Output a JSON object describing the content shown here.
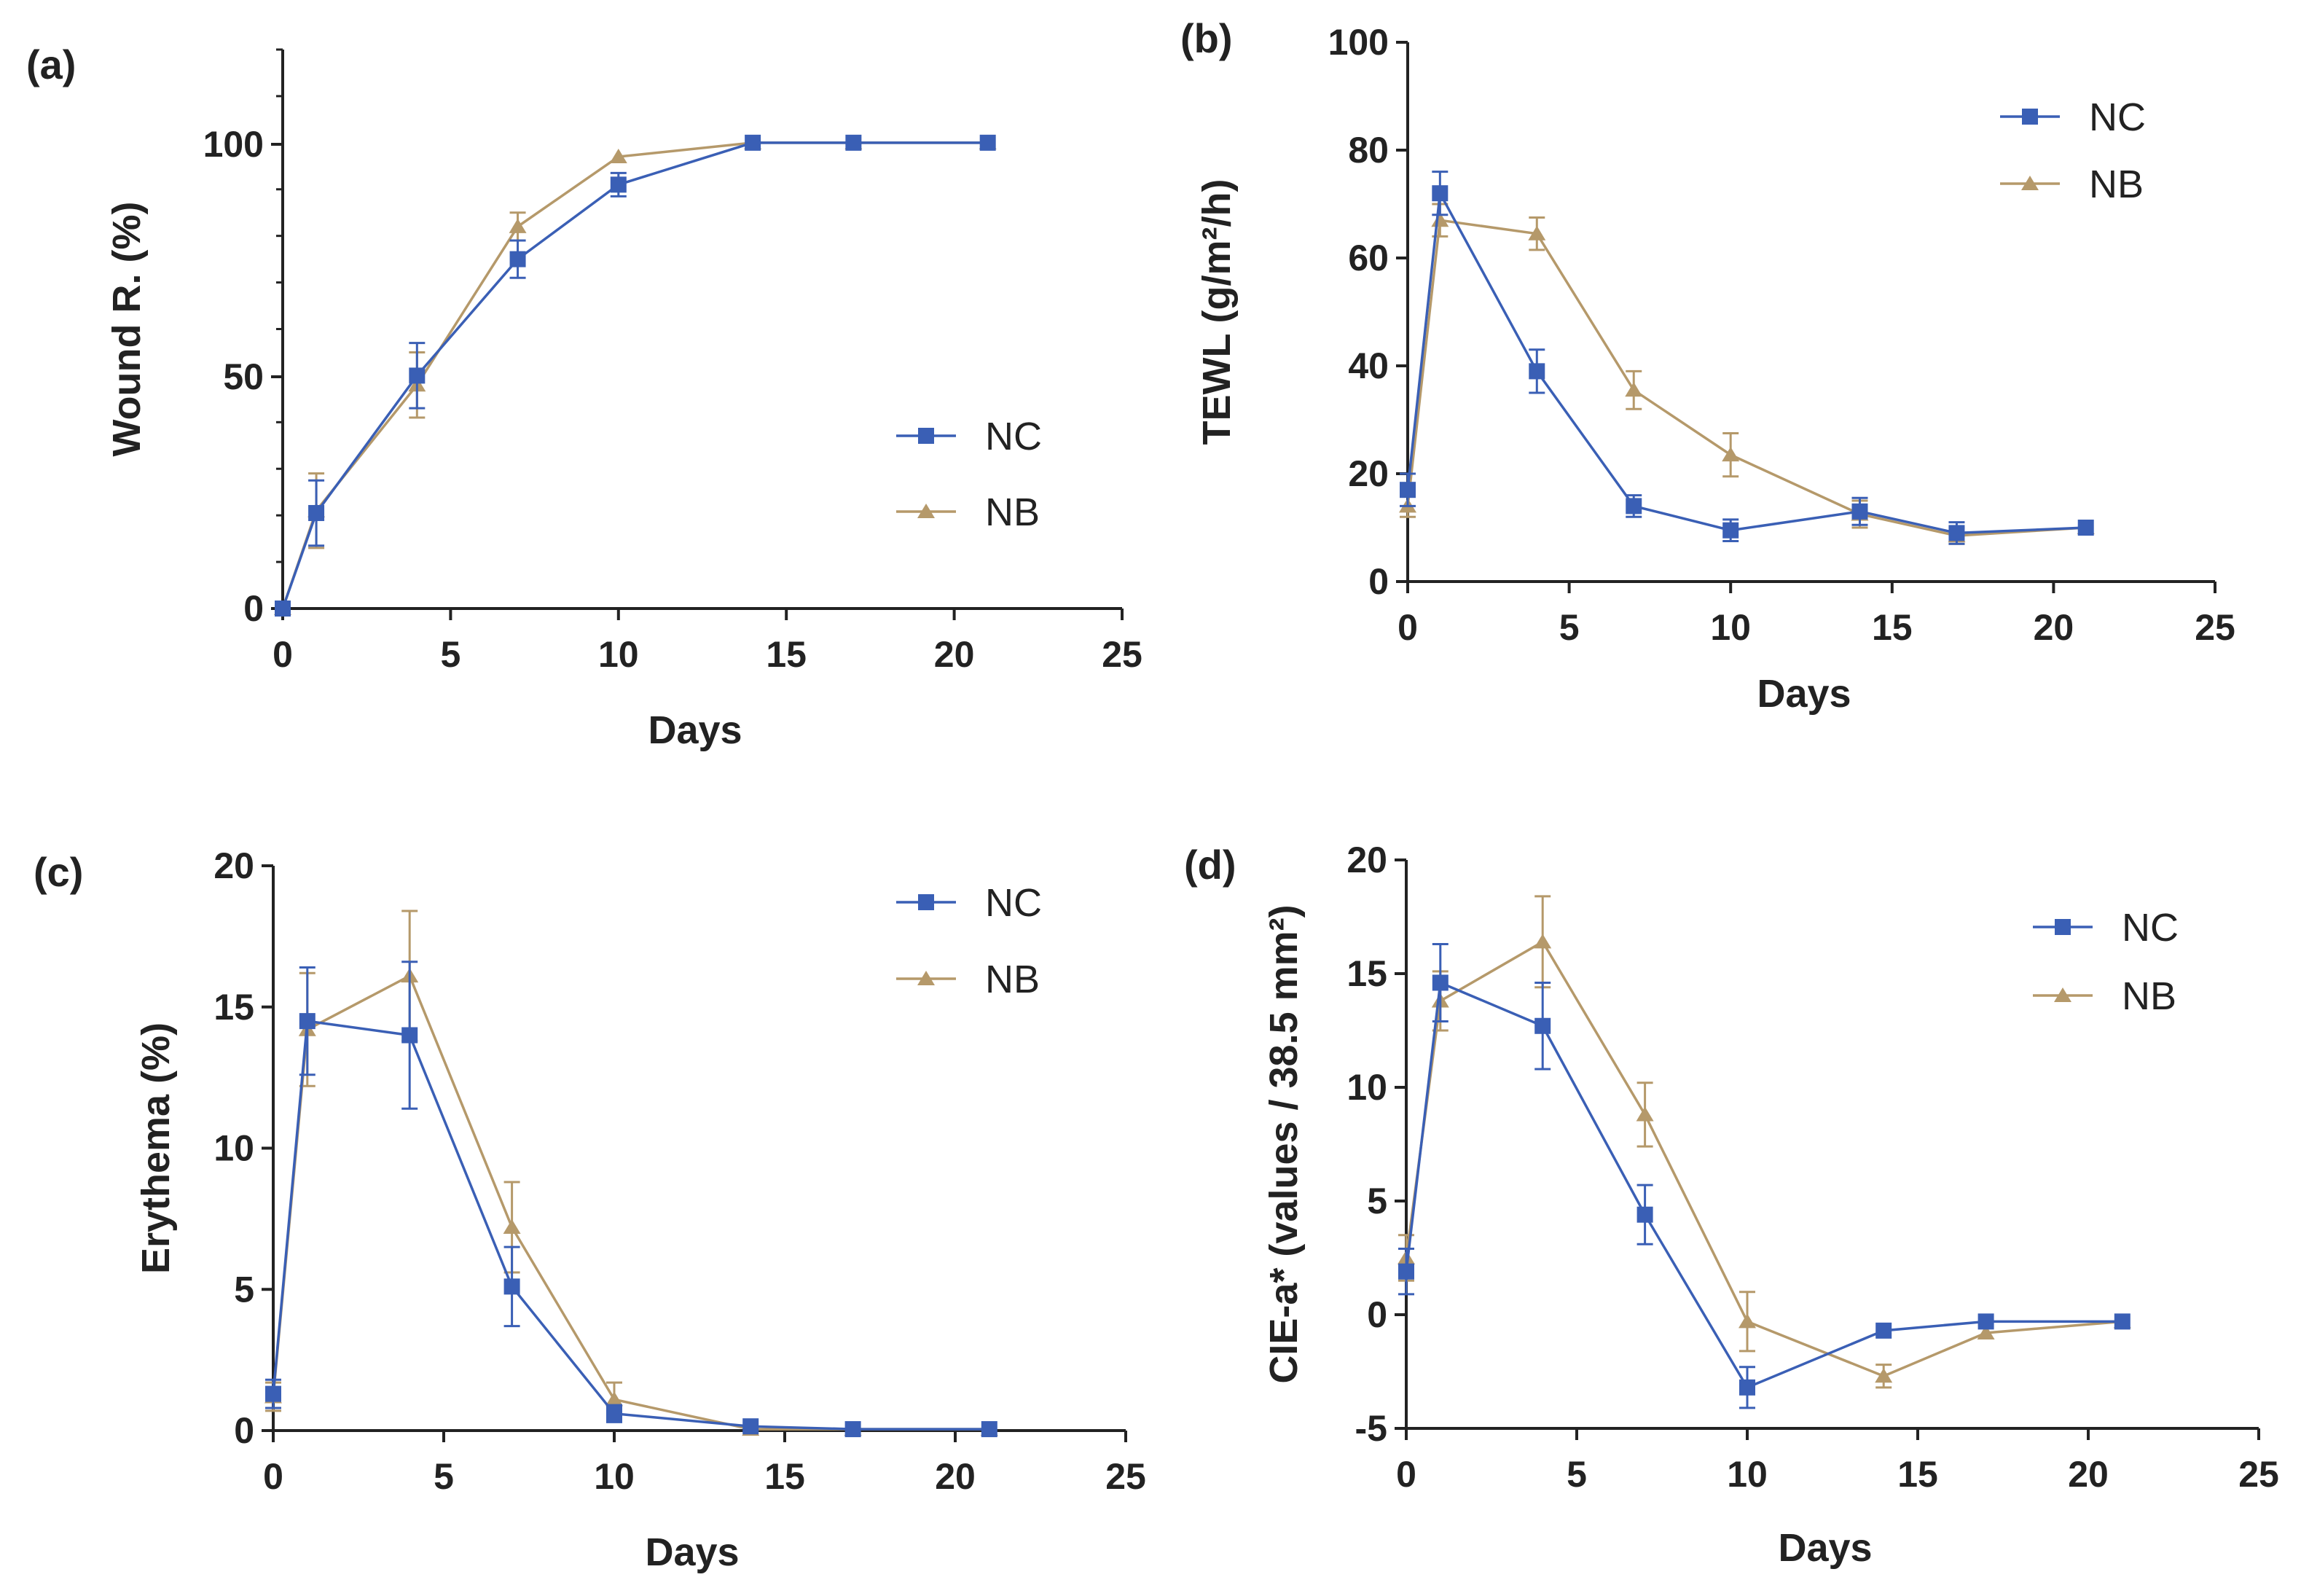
{
  "colors": {
    "NC": "#3a5fb5",
    "NB": "#b5996a",
    "axis": "#222222"
  },
  "chart_data": [
    {
      "panel": "(a)",
      "type": "line",
      "xlabel": "Days",
      "ylabel": "Wound R. (%)",
      "xlim": [
        0,
        25
      ],
      "ylim": [
        0,
        120
      ],
      "xticks": [
        "0",
        "5",
        "10",
        "15",
        "20",
        "25"
      ],
      "yticks": [
        "0",
        "50",
        "100"
      ],
      "legend_position": "center-right",
      "series": [
        {
          "name": "NC",
          "marker": "square",
          "x": [
            0,
            1,
            4,
            7,
            10,
            14,
            17,
            21
          ],
          "y": [
            0,
            20.5,
            50,
            75,
            91,
            100,
            100,
            100
          ],
          "err": [
            0,
            7,
            7,
            4,
            2.5,
            0,
            0,
            0
          ]
        },
        {
          "name": "NB",
          "marker": "triangle",
          "x": [
            0,
            1,
            4,
            7,
            10,
            14,
            17,
            21
          ],
          "y": [
            0,
            21,
            48,
            82,
            97,
            100,
            100,
            100
          ],
          "err": [
            0,
            8,
            7,
            3,
            0,
            0,
            0,
            0
          ]
        }
      ]
    },
    {
      "panel": "(b)",
      "type": "line",
      "xlabel": "Days",
      "ylabel": "TEWL (g/m²/h)",
      "xlim": [
        0,
        25
      ],
      "ylim": [
        0,
        100
      ],
      "xticks": [
        "0",
        "5",
        "10",
        "15",
        "20",
        "25"
      ],
      "yticks": [
        "0",
        "20",
        "40",
        "60",
        "80",
        "100"
      ],
      "legend_position": "top-right",
      "series": [
        {
          "name": "NC",
          "marker": "square",
          "x": [
            0,
            1,
            4,
            7,
            10,
            14,
            17,
            21
          ],
          "y": [
            17,
            72,
            39,
            14,
            9.5,
            13,
            9,
            10
          ],
          "err": [
            3,
            4,
            4,
            2,
            2,
            2.5,
            2,
            0
          ]
        },
        {
          "name": "NB",
          "marker": "triangle",
          "x": [
            0,
            1,
            4,
            7,
            10,
            14,
            17,
            21
          ],
          "y": [
            14,
            67,
            64.5,
            35.5,
            23.5,
            12.5,
            8.5,
            10
          ],
          "err": [
            2,
            3,
            3,
            3.5,
            4,
            2.5,
            1.5,
            0
          ]
        }
      ]
    },
    {
      "panel": "(c)",
      "type": "line",
      "xlabel": "Days",
      "ylabel": "Erythema (%)",
      "xlim": [
        0,
        25
      ],
      "ylim": [
        0,
        20
      ],
      "xticks": [
        "0",
        "5",
        "10",
        "15",
        "20",
        "25"
      ],
      "yticks": [
        "0",
        "5",
        "10",
        "15",
        "20"
      ],
      "legend_position": "top-right",
      "series": [
        {
          "name": "NC",
          "marker": "square",
          "x": [
            0,
            1,
            4,
            7,
            10,
            14,
            17,
            21
          ],
          "y": [
            1.3,
            14.5,
            14,
            5.1,
            0.6,
            0.15,
            0.05,
            0.05
          ],
          "err": [
            0.5,
            1.9,
            2.6,
            1.4,
            0.3,
            0,
            0,
            0
          ]
        },
        {
          "name": "NB",
          "marker": "triangle",
          "x": [
            0,
            1,
            4,
            7,
            10,
            14,
            17,
            21
          ],
          "y": [
            1.2,
            14.2,
            16.1,
            7.2,
            1.1,
            0.05,
            0.05,
            0.05
          ],
          "err": [
            0.5,
            2,
            2.3,
            1.6,
            0.6,
            0,
            0,
            0
          ]
        }
      ]
    },
    {
      "panel": "(d)",
      "type": "line",
      "xlabel": "Days",
      "ylabel": "CIE-a* (values / 38.5 mm²)",
      "xlim": [
        0,
        25
      ],
      "ylim": [
        -5,
        20
      ],
      "xticks": [
        "0",
        "5",
        "10",
        "15",
        "20",
        "25"
      ],
      "yticks": [
        "-5",
        "0",
        "5",
        "10",
        "15",
        "20"
      ],
      "legend_position": "top-right",
      "series": [
        {
          "name": "NC",
          "marker": "square",
          "x": [
            0,
            1,
            4,
            7,
            10,
            14,
            17,
            21
          ],
          "y": [
            1.9,
            14.6,
            12.7,
            4.4,
            -3.2,
            -0.7,
            -0.3,
            -0.3
          ],
          "err": [
            1,
            1.7,
            1.9,
            1.3,
            0.9,
            0,
            0,
            0
          ]
        },
        {
          "name": "NB",
          "marker": "triangle",
          "x": [
            0,
            1,
            4,
            7,
            10,
            14,
            17,
            21
          ],
          "y": [
            2.5,
            13.8,
            16.4,
            8.8,
            -0.3,
            -2.7,
            -0.8,
            -0.3
          ],
          "err": [
            1,
            1.3,
            2,
            1.4,
            1.3,
            0.5,
            0,
            0
          ]
        }
      ]
    }
  ]
}
